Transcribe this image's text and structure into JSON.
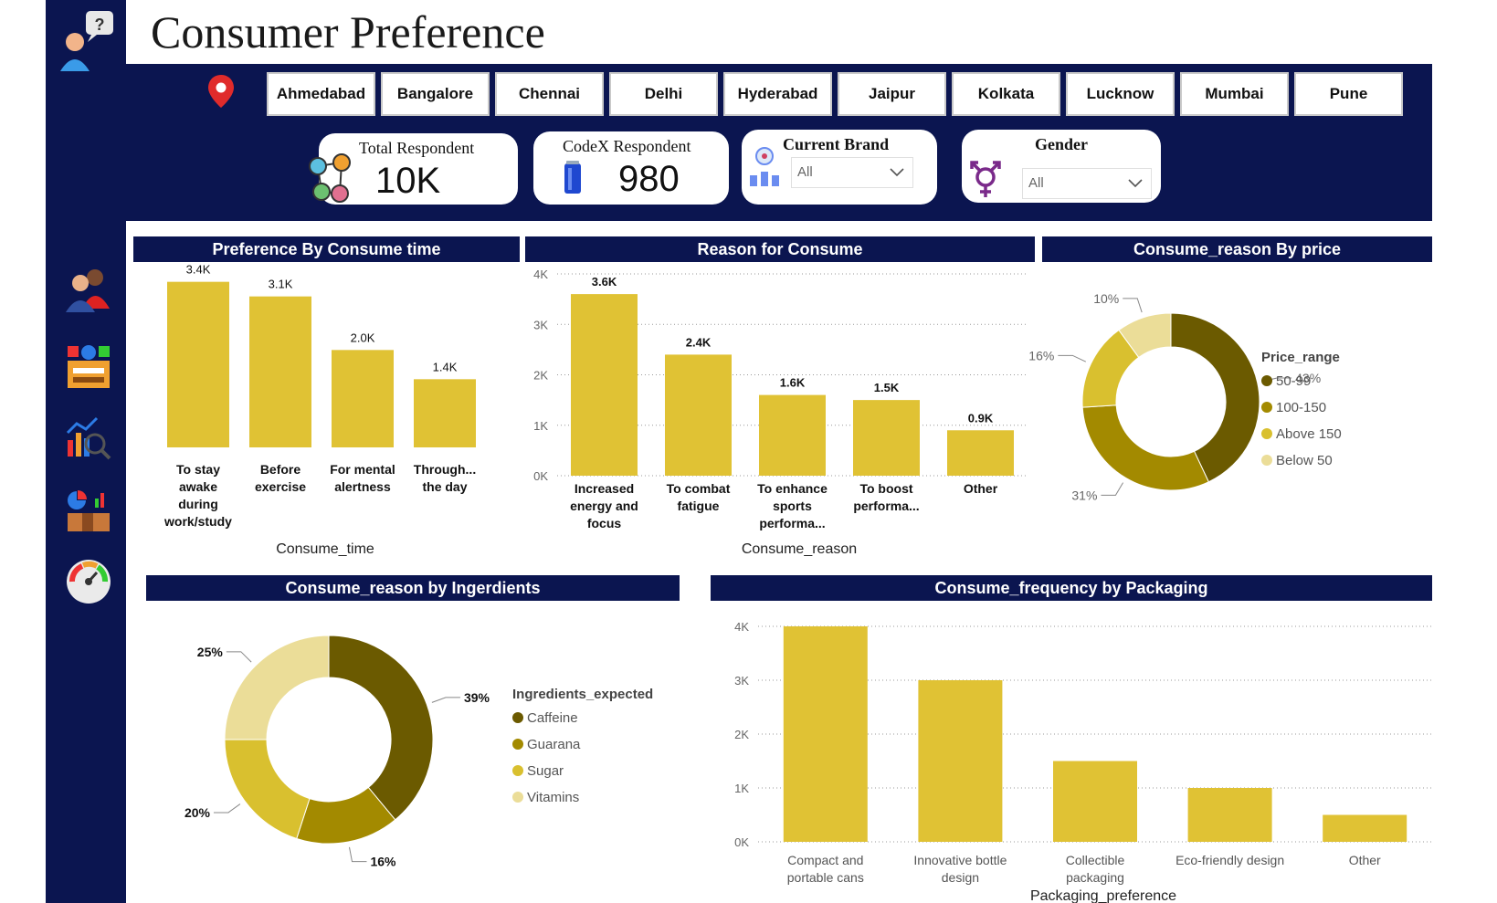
{
  "header": {
    "title": "Consumer Preference"
  },
  "cities": [
    "Ahmedabad",
    "Bangalore",
    "Chennai",
    "Delhi",
    "Hyderabad",
    "Jaipur",
    "Kolkata",
    "Lucknow",
    "Mumbai",
    "Pune"
  ],
  "kpis": {
    "total": {
      "label": "Total Respondent",
      "value": "10K"
    },
    "codex": {
      "label": "CodeX Respondent",
      "value": "980"
    }
  },
  "filters": {
    "brand": {
      "label": "Current Brand",
      "value": "All"
    },
    "gender": {
      "label": "Gender",
      "value": "All"
    }
  },
  "sidebar": {
    "icons": [
      "help-user-icon",
      "people-icon",
      "ingredients-icon",
      "analytics-icon",
      "dashboard-icon",
      "gauge-icon"
    ]
  },
  "colors": {
    "navy": "#0b1550",
    "bar": "#e0c234",
    "dark_olive": "#6b5a00",
    "olive": "#a38a00",
    "gold": "#d9c02f",
    "light_gold": "#ebdd98"
  },
  "chart_data": [
    {
      "type": "bar",
      "title": "Preference By Consume time",
      "xlabel": "Consume_time",
      "categories": [
        [
          "To stay",
          "awake",
          "during",
          "work/study"
        ],
        [
          "Before",
          "exercise"
        ],
        [
          "For mental",
          "alertness"
        ],
        [
          "Through...",
          "the day"
        ]
      ],
      "values": [
        3.4,
        3.1,
        2.0,
        1.4
      ],
      "data_labels": [
        "3.4K",
        "3.1K",
        "2.0K",
        "1.4K"
      ]
    },
    {
      "type": "bar",
      "title": "Reason for Consume",
      "xlabel": "Consume_reason",
      "categories": [
        [
          "Increased",
          "energy and",
          "focus"
        ],
        [
          "To combat",
          "fatigue"
        ],
        [
          "To enhance",
          "sports",
          "performa..."
        ],
        [
          "To boost",
          "performa..."
        ],
        [
          "Other"
        ]
      ],
      "values": [
        3.6,
        2.4,
        1.6,
        1.5,
        0.9
      ],
      "data_labels": [
        "3.6K",
        "2.4K",
        "1.6K",
        "1.5K",
        "0.9K"
      ],
      "yticks": [
        "0K",
        "1K",
        "2K",
        "3K",
        "4K"
      ],
      "ylim": [
        0,
        4
      ]
    },
    {
      "type": "pie",
      "title": "Consume_reason By price",
      "legend_title": "Price_range",
      "labels": [
        "50-99",
        "100-150",
        "Above 150",
        "Below 50"
      ],
      "values": [
        43,
        31,
        16,
        10
      ],
      "data_labels": [
        "43%",
        "31%",
        "16%",
        "10%"
      ]
    },
    {
      "type": "pie",
      "title": "Consume_reason by Ingerdients",
      "legend_title": "Ingredients_expected",
      "labels": [
        "Caffeine",
        "Guarana",
        "Sugar",
        "Vitamins"
      ],
      "values": [
        39,
        16,
        20,
        25
      ],
      "data_labels": [
        "39%",
        "16%",
        "20%",
        "25%"
      ]
    },
    {
      "type": "bar",
      "title": "Consume_frequency by Packaging",
      "xlabel": "Packaging_preference",
      "categories": [
        [
          "Compact and",
          "portable cans"
        ],
        [
          "Innovative bottle",
          "design"
        ],
        [
          "Collectible",
          "packaging"
        ],
        [
          "Eco-friendly design"
        ],
        [
          "Other"
        ]
      ],
      "values": [
        4.0,
        3.0,
        1.5,
        1.0,
        0.5
      ],
      "yticks": [
        "0K",
        "1K",
        "2K",
        "3K",
        "4K"
      ],
      "ylim": [
        0,
        4
      ]
    }
  ]
}
